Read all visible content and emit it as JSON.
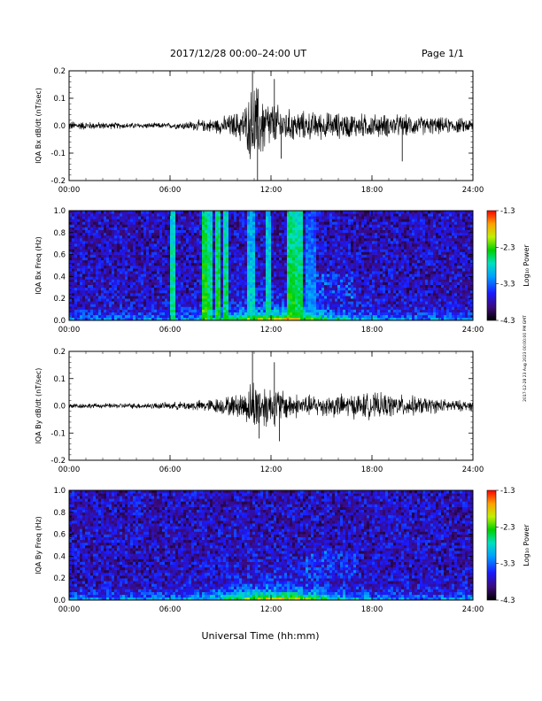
{
  "header": {
    "title": "2017/12/28  00:00–24:00 UT",
    "page": "Page 1/1"
  },
  "side_note": "2017-12-28 23 Aug 2023 00:00:00 PM GMT",
  "footer": {
    "xlabel": "Universal Time (hh:mm)"
  },
  "colors": {
    "trace": "#000000",
    "frame": "#000000",
    "background": "#ffffff"
  },
  "chart_data": [
    {
      "type": "line",
      "ylabel": "IQA Bx dB/dt (nT/sec)",
      "ylim": [
        -0.2,
        0.2
      ],
      "yticks": [
        "0.2",
        "0.1",
        "0.0",
        "-0.1",
        "-0.2"
      ],
      "xticks": [
        "00:00",
        "06:00",
        "12:00",
        "18:00",
        "24:00"
      ],
      "xlim": [
        0,
        24
      ],
      "envelope": {
        "hours": [
          0,
          2,
          4,
          6,
          8,
          9,
          10,
          10.5,
          11,
          11.5,
          12,
          13,
          14,
          16,
          18,
          20,
          22,
          24
        ],
        "amplitude": [
          0.02,
          0.015,
          0.012,
          0.012,
          0.025,
          0.035,
          0.06,
          0.09,
          0.19,
          0.14,
          0.1,
          0.07,
          0.06,
          0.055,
          0.05,
          0.045,
          0.035,
          0.03
        ]
      },
      "spikes": [
        {
          "hour": 10.9,
          "value": 0.2
        },
        {
          "hour": 11.2,
          "value": -0.2
        },
        {
          "hour": 12.2,
          "value": 0.17
        },
        {
          "hour": 12.6,
          "value": -0.12
        },
        {
          "hour": 19.8,
          "value": -0.13
        }
      ]
    },
    {
      "type": "heatmap",
      "ylabel": "IQA Bx Freq (Hz)",
      "ylim": [
        0,
        1.0
      ],
      "yticks": [
        "1.0",
        "0.8",
        "0.6",
        "0.4",
        "0.2",
        "0.0"
      ],
      "xticks": [
        "00:00",
        "06:00",
        "12:00",
        "18:00",
        "24:00"
      ],
      "xlim": [
        0,
        24
      ],
      "colorbar": {
        "label": "Log₁₀ Power",
        "ticks": [
          "-1.3",
          "-2.3",
          "-3.3",
          "-4.3"
        ],
        "range": [
          -4.3,
          -1.3
        ]
      },
      "vertical_bands": [
        {
          "hour": 6.2,
          "width": 0.06,
          "power": -2.4
        },
        {
          "hour": 8.0,
          "width": 0.08,
          "power": -2.1
        },
        {
          "hour": 8.35,
          "width": 0.05,
          "power": -2.3
        },
        {
          "hour": 8.8,
          "width": 0.06,
          "power": -2.2
        },
        {
          "hour": 9.3,
          "width": 0.05,
          "power": -2.3
        },
        {
          "hour": 10.8,
          "width": 0.3,
          "power": -2.6
        },
        {
          "hour": 11.8,
          "width": 0.08,
          "power": -2.5
        },
        {
          "hour": 13.2,
          "width": 0.25,
          "power": -2.2
        },
        {
          "hour": 13.6,
          "width": 0.35,
          "power": -2.3
        },
        {
          "hour": 14.4,
          "width": 0.3,
          "power": -2.9
        }
      ]
    },
    {
      "type": "line",
      "ylabel": "IQA By dB/dt (nT/sec)",
      "ylim": [
        -0.2,
        0.2
      ],
      "yticks": [
        "0.2",
        "0.1",
        "0.0",
        "-0.1",
        "-0.2"
      ],
      "xticks": [
        "00:00",
        "06:00",
        "12:00",
        "18:00",
        "24:00"
      ],
      "xlim": [
        0,
        24
      ],
      "envelope": {
        "hours": [
          0,
          2,
          4,
          6,
          8,
          9,
          10,
          10.5,
          11,
          11.5,
          12,
          13,
          14,
          16,
          18,
          20,
          22,
          24
        ],
        "amplitude": [
          0.012,
          0.01,
          0.012,
          0.015,
          0.025,
          0.035,
          0.05,
          0.07,
          0.12,
          0.1,
          0.09,
          0.06,
          0.045,
          0.05,
          0.055,
          0.045,
          0.03,
          0.02
        ]
      },
      "spikes": [
        {
          "hour": 10.9,
          "value": 0.2
        },
        {
          "hour": 11.3,
          "value": -0.12
        },
        {
          "hour": 12.2,
          "value": 0.16
        },
        {
          "hour": 12.5,
          "value": -0.13
        }
      ]
    },
    {
      "type": "heatmap",
      "ylabel": "IQA By Freq (Hz)",
      "ylim": [
        0,
        1.0
      ],
      "yticks": [
        "1.0",
        "0.8",
        "0.6",
        "0.4",
        "0.2",
        "0.0"
      ],
      "xticks": [
        "00:00",
        "06:00",
        "12:00",
        "18:00",
        "24:00"
      ],
      "xlim": [
        0,
        24
      ],
      "colorbar": {
        "label": "Log₁₀ Power",
        "ticks": [
          "-1.3",
          "-2.3",
          "-3.3",
          "-4.3"
        ],
        "range": [
          -4.3,
          -1.3
        ]
      },
      "vertical_bands": []
    }
  ]
}
